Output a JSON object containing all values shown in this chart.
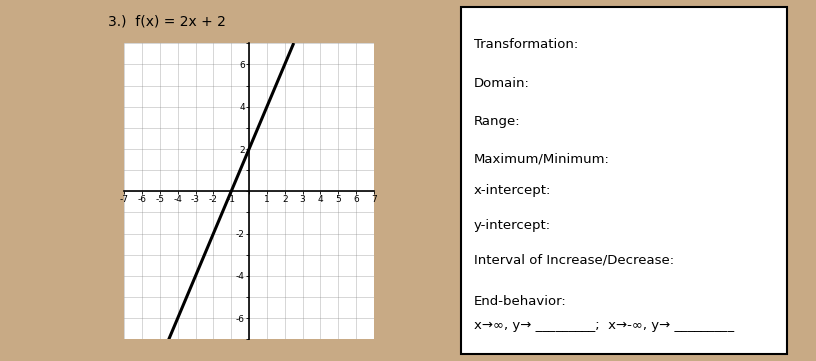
{
  "title": "3.)  f(x) = 2x + 2",
  "graph": {
    "xlim": [
      -7,
      7
    ],
    "ylim": [
      -7,
      7
    ],
    "line_color": "black",
    "line_width": 2.2
  },
  "right_panel": {
    "labels": [
      "Transformation:",
      "Domain:",
      "Range:",
      "Maximum/Minimum:",
      "x-intercept:",
      "y-intercept:",
      "Interval of Increase/Decrease:",
      "End-behavior:",
      "x→∞, y→ _________;  x→-∞, y→ _________"
    ],
    "y_positions": [
      0.91,
      0.8,
      0.69,
      0.58,
      0.49,
      0.39,
      0.29,
      0.17,
      0.1
    ]
  },
  "bg_color": "#c8aa85",
  "paper_color": "#f0ece4",
  "white_color": "#ffffff",
  "font_size": 9.5,
  "title_fontsize": 10
}
